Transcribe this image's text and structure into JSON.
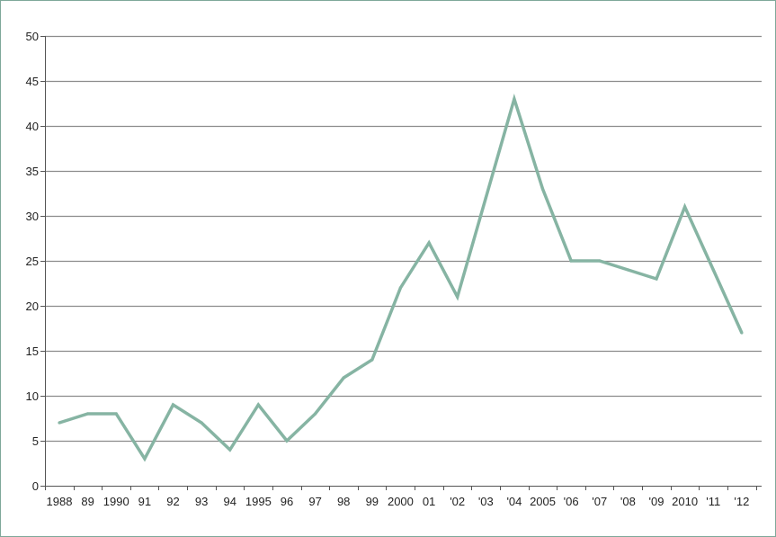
{
  "chart_data": {
    "type": "line",
    "title": "",
    "xlabel": "",
    "ylabel": "",
    "ylim": [
      0,
      50
    ],
    "yticks": [
      0,
      5,
      10,
      15,
      20,
      25,
      30,
      35,
      40,
      45,
      50
    ],
    "ytick_labels": [
      "0",
      "5",
      "10",
      "15",
      "20",
      "25",
      "30",
      "35",
      "40",
      "45",
      "50"
    ],
    "grid": true,
    "legend": "none",
    "categories": [
      "1988",
      "89",
      "1990",
      "91",
      "92",
      "93",
      "94",
      "1995",
      "96",
      "97",
      "98",
      "99",
      "2000",
      "01",
      "'02",
      "'03",
      "'04",
      "2005",
      "'06",
      "'07",
      "'08",
      "'09",
      "2010",
      "'11",
      "'12"
    ],
    "series": [
      {
        "color": "#86b4a3",
        "values": [
          7,
          8,
          8,
          3,
          9,
          7,
          4,
          9,
          5,
          8,
          12,
          14,
          22,
          27,
          21,
          32,
          43,
          33,
          25,
          25,
          24,
          23,
          31,
          24,
          17
        ]
      }
    ],
    "colors": {
      "line": "#86b4a3",
      "grid": "#8c8c8c",
      "frame": "#7fa89a",
      "text": "#222222"
    }
  }
}
